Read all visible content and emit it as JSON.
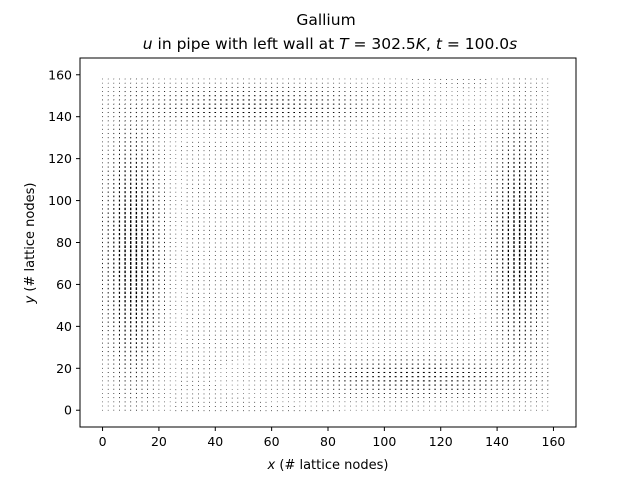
{
  "chart_data": {
    "type": "quiver",
    "title": "Gallium",
    "subtitle_parts": {
      "var": "u",
      "text1": " in pipe with left wall at ",
      "T_sym": "T",
      "T_val": " = 302.5",
      "K_sym": "K",
      "sep": ", ",
      "t_sym": "t",
      "t_val": " = 100.0",
      "s_sym": "s"
    },
    "xlabel": {
      "var": "x",
      "text": " (# lattice nodes)"
    },
    "ylabel": {
      "var": "y",
      "text": " (# lattice nodes)"
    },
    "xlim": [
      -8,
      168
    ],
    "ylim": [
      -8,
      168
    ],
    "xticks": [
      0,
      20,
      40,
      60,
      80,
      100,
      120,
      140,
      160
    ],
    "yticks": [
      0,
      20,
      40,
      60,
      80,
      100,
      120,
      140,
      160
    ],
    "grid_x": [
      0,
      159
    ],
    "grid_y": [
      0,
      159
    ],
    "field": "single clockwise convection cell: upward flow near the right wall (x≈150), downward flow near the left wall (x≈10), leftward flow along the top (y≈145), rightward flow along the bottom (y≈15), near-stagnant core",
    "grid": false,
    "legend": "none",
    "arrow_color": "#000000"
  }
}
